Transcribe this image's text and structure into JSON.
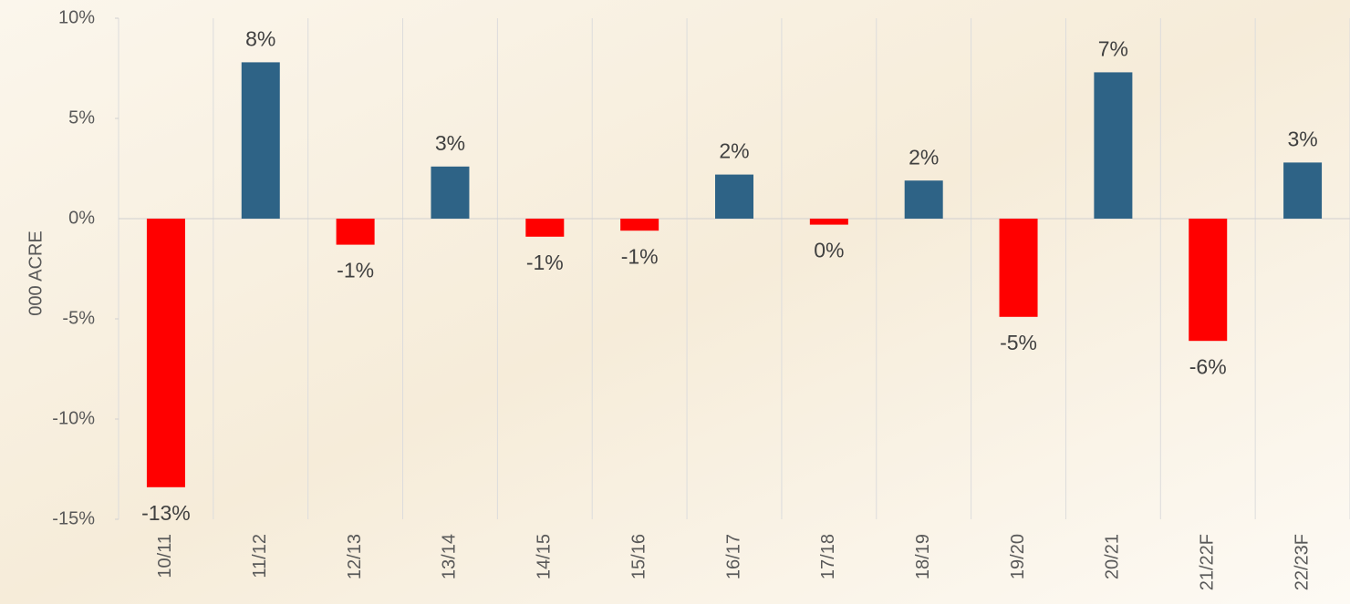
{
  "chart_data": {
    "type": "bar",
    "y_label": "000 ACRE",
    "categories": [
      "10/11",
      "11/12",
      "12/13",
      "13/14",
      "14/15",
      "15/16",
      "16/17",
      "17/18",
      "18/19",
      "19/20",
      "20/21",
      "21/22F",
      "22/23F"
    ],
    "values": [
      -13.4,
      7.8,
      -1.3,
      2.6,
      -0.9,
      -0.6,
      2.2,
      -0.3,
      1.9,
      -4.9,
      7.3,
      -6.1,
      2.8
    ],
    "value_labels": [
      "-13%",
      "8%",
      "-1%",
      "3%",
      "-1%",
      "-1%",
      "2%",
      "0%",
      "2%",
      "-5%",
      "7%",
      "-6%",
      "3%"
    ],
    "positive_color": "#2e6386",
    "negative_color": "#ff0000",
    "ylim": [
      -15,
      10
    ],
    "yticks": [
      {
        "value": -15,
        "label": "-15%"
      },
      {
        "value": -10,
        "label": "-10%"
      },
      {
        "value": -5,
        "label": "-5%"
      },
      {
        "value": 0,
        "label": "0%"
      },
      {
        "value": 5,
        "label": "5%"
      },
      {
        "value": 10,
        "label": "10%"
      }
    ],
    "grid": true
  }
}
